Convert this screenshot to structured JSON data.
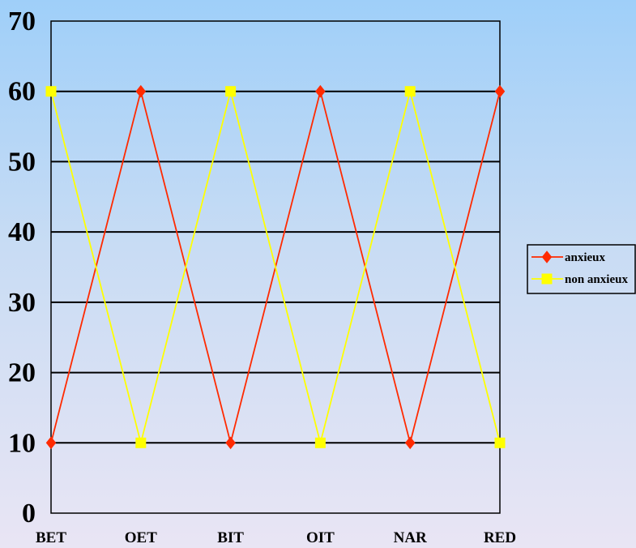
{
  "chart_data": {
    "type": "line",
    "categories": [
      "BET",
      "OET",
      "BIT",
      "OIT",
      "NAR",
      "RED"
    ],
    "series": [
      {
        "name": "anxieux",
        "values": [
          10,
          60,
          10,
          60,
          10,
          60
        ],
        "color": "#ff2a00",
        "marker": "diamond"
      },
      {
        "name": "non anxieux",
        "values": [
          60,
          10,
          60,
          10,
          60,
          10
        ],
        "color": "#ffff00",
        "marker": "square"
      }
    ],
    "yticks": [
      0,
      10,
      20,
      30,
      40,
      50,
      60,
      70
    ],
    "ylim": [
      0,
      70
    ],
    "grid": true,
    "legend": "right",
    "title": "",
    "xlabel": "",
    "ylabel": ""
  }
}
